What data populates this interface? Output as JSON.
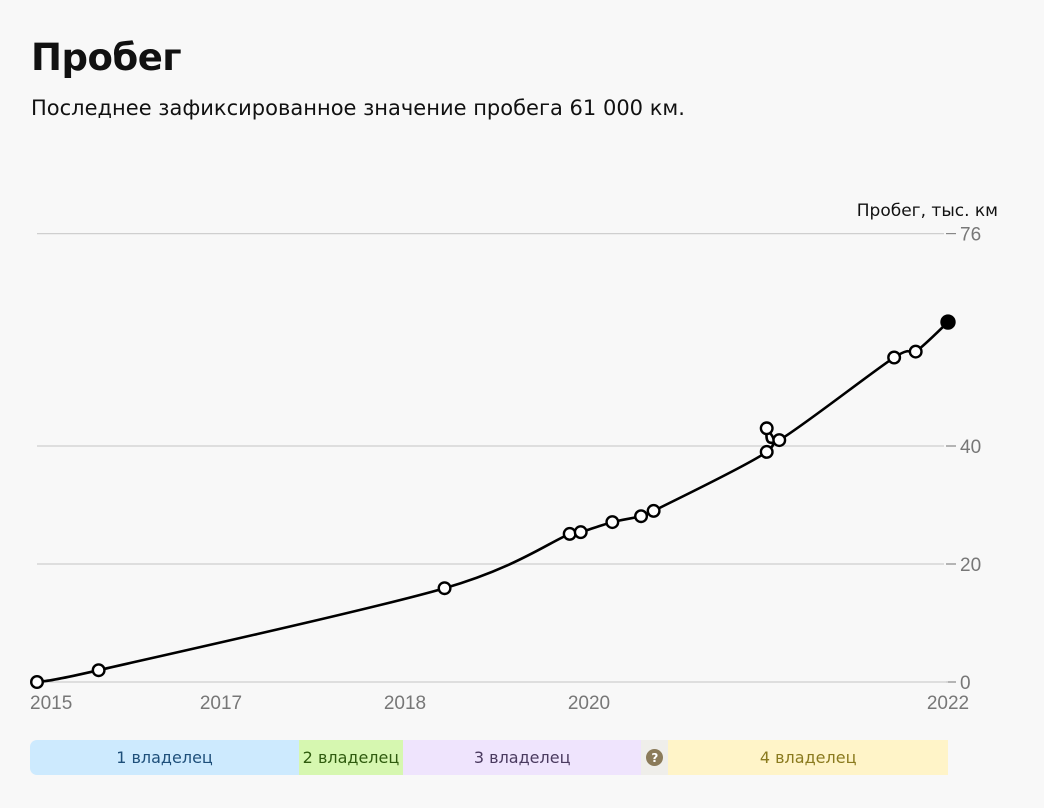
{
  "title": "Пробег",
  "subtitle": "Последнее зафиксированное значение пробега 61 000 км.",
  "chart_data": {
    "type": "line",
    "ylabel": "Пробег, тыс. км",
    "ylim": [
      0,
      76
    ],
    "y_ticks": [
      0,
      20,
      40,
      76
    ],
    "x_ticks": [
      2015,
      2017,
      2018,
      2020,
      2022
    ],
    "grid": true,
    "series": [
      {
        "name": "Пробег",
        "points": [
          {
            "x": 2015.0,
            "y": 0
          },
          {
            "x": 2015.67,
            "y": 2.0
          },
          {
            "x": 2018.43,
            "y": 15.9
          },
          {
            "x": 2019.79,
            "y": 25.1
          },
          {
            "x": 2019.91,
            "y": 25.4
          },
          {
            "x": 2020.13,
            "y": 27.1
          },
          {
            "x": 2020.29,
            "y": 28.1
          },
          {
            "x": 2020.36,
            "y": 29.0
          },
          {
            "x": 2020.99,
            "y": 39.0
          },
          {
            "x": 2020.99,
            "y": 43.0
          },
          {
            "x": 2021.06,
            "y": 41.0
          },
          {
            "x": 2021.7,
            "y": 55.0
          },
          {
            "x": 2021.82,
            "y": 56.0
          },
          {
            "x": 2022.0,
            "y": 61.0,
            "last": true
          }
        ]
      }
    ]
  },
  "owners": [
    {
      "label": "1 владелец",
      "from": 2015.0,
      "to": 2017.5,
      "bg": "#cdeafe",
      "fg": "#1e4f7a"
    },
    {
      "label": "2 владелец",
      "from": 2017.5,
      "to": 2018.13,
      "bg": "#d6f7b0",
      "fg": "#2f5b0e"
    },
    {
      "label": "3 владелец",
      "from": 2018.13,
      "to": 2020.37,
      "bg": "#efe4fd",
      "fg": "#4a3a5f"
    },
    {
      "label": "?",
      "from": 2020.37,
      "to": 2020.52,
      "bg": "#efeeea",
      "fg": "#ffffff",
      "unknown": true
    },
    {
      "label": "4 владелец",
      "from": 2020.52,
      "to": 2022.0,
      "bg": "#fff4c8",
      "fg": "#8a7a1e"
    }
  ]
}
